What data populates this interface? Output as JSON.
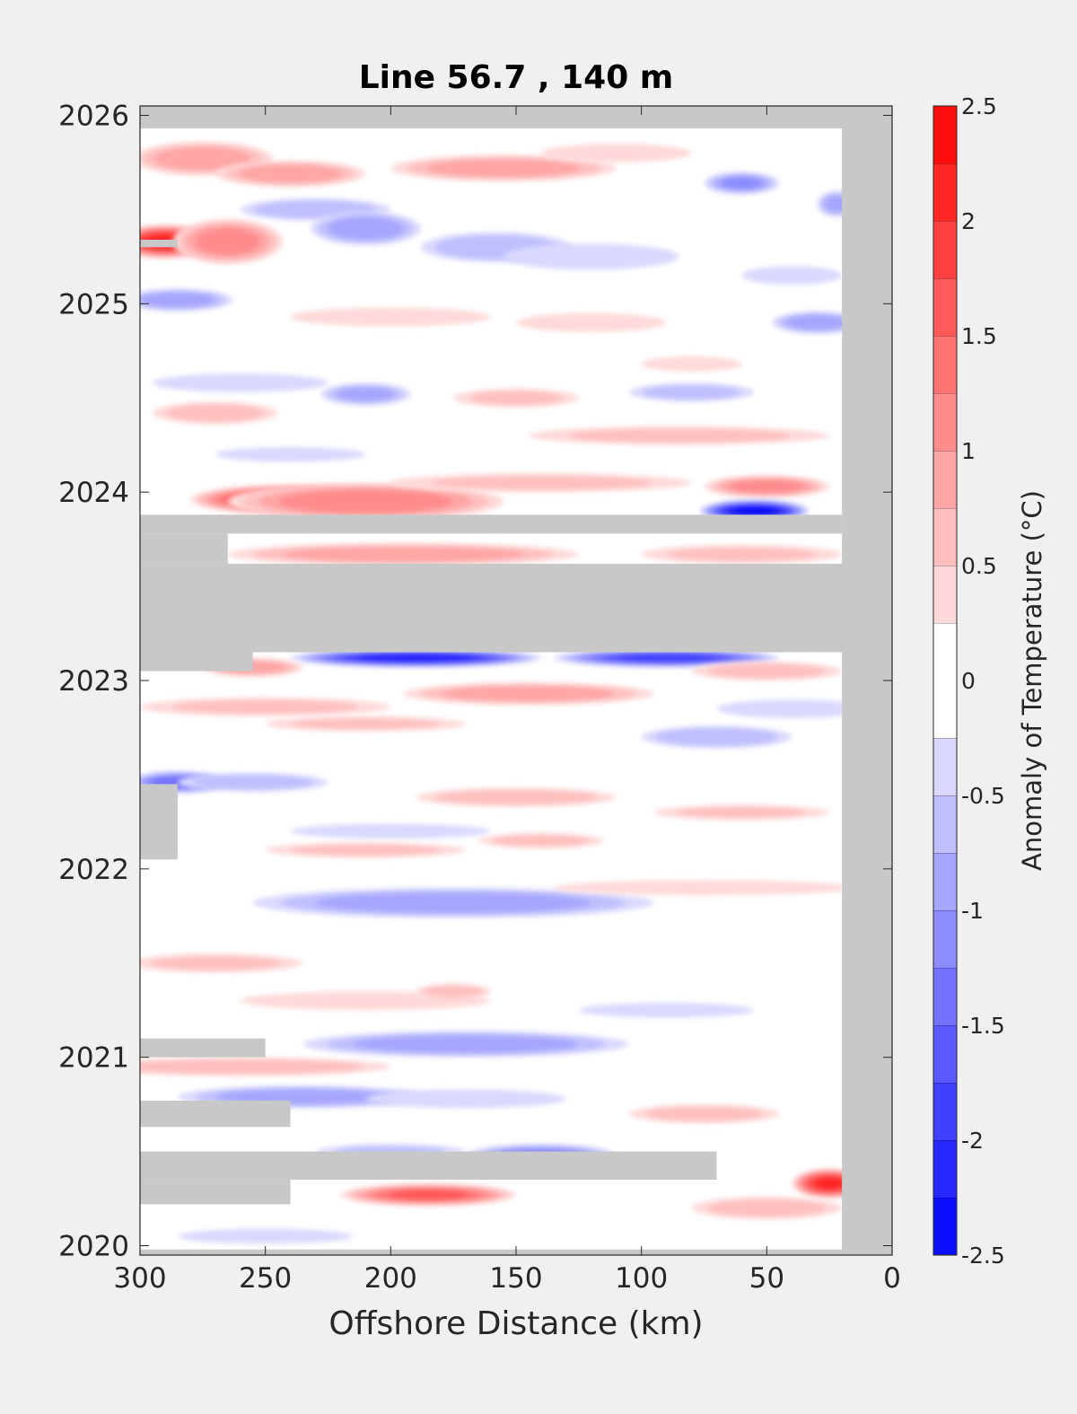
{
  "chart_data": {
    "type": "heatmap",
    "title": "Line 56.7 , 140 m",
    "xlabel": "Offshore Distance (km)",
    "ylabel": "",
    "colorbar_label": "Anomaly of Temperature (°C)",
    "x_direction": "reversed",
    "xlim": [
      0,
      300
    ],
    "ylim": [
      2019.95,
      2026.05
    ],
    "x_ticks": [
      300,
      250,
      200,
      150,
      100,
      50,
      0
    ],
    "y_ticks": [
      2020,
      2021,
      2022,
      2023,
      2024,
      2025,
      2026
    ],
    "colorbar_ticks": [
      -2.5,
      -2,
      -1.5,
      -1,
      -0.5,
      0,
      0.5,
      1,
      1.5,
      2,
      2.5
    ],
    "color_levels": [
      -2.5,
      -2.25,
      -2,
      -1.75,
      -1.5,
      -1.25,
      -1,
      -0.75,
      -0.5,
      -0.25,
      0.25,
      0.5,
      0.75,
      1,
      1.25,
      1.5,
      1.75,
      2,
      2.25,
      2.5
    ],
    "colormap": {
      "negative": "#0000ff",
      "zero": "#ffffff",
      "positive": "#ff0000"
    },
    "no_data_color": "#c8c8c8",
    "data_coverage": {
      "x": [
        20,
        300
      ],
      "y": [
        2019.98,
        2025.93
      ]
    },
    "no_data_regions": [
      {
        "x": [
          0,
          20
        ],
        "y": [
          2019.95,
          2026.05
        ]
      },
      {
        "x": [
          0,
          300
        ],
        "y": [
          2025.93,
          2026.05
        ]
      },
      {
        "x": [
          0,
          300
        ],
        "y": [
          2019.95,
          2019.98
        ]
      },
      {
        "x": [
          0,
          300
        ],
        "y": [
          2023.15,
          2023.62
        ]
      },
      {
        "x": [
          20,
          300
        ],
        "y": [
          2023.78,
          2023.88
        ]
      },
      {
        "x": [
          265,
          300
        ],
        "y": [
          2023.62,
          2023.78
        ]
      },
      {
        "x": [
          255,
          300
        ],
        "y": [
          2023.05,
          2023.15
        ]
      },
      {
        "x": [
          285,
          300
        ],
        "y": [
          2022.05,
          2022.45
        ]
      },
      {
        "x": [
          250,
          300
        ],
        "y": [
          2021.0,
          2021.1
        ]
      },
      {
        "x": [
          240,
          300
        ],
        "y": [
          2020.63,
          2020.77
        ]
      },
      {
        "x": [
          70,
          300
        ],
        "y": [
          2020.35,
          2020.5
        ]
      },
      {
        "x": [
          240,
          300
        ],
        "y": [
          2020.22,
          2020.35
        ]
      },
      {
        "x": [
          285,
          300
        ],
        "y": [
          2025.3,
          2025.34
        ]
      }
    ],
    "anomaly_features": [
      {
        "x": 275,
        "y": 2025.77,
        "value": 0.9,
        "rx": 28,
        "ry": 0.09
      },
      {
        "x": 240,
        "y": 2025.69,
        "value": 0.9,
        "rx": 30,
        "ry": 0.07
      },
      {
        "x": 155,
        "y": 2025.72,
        "value": 0.9,
        "rx": 45,
        "ry": 0.07
      },
      {
        "x": 110,
        "y": 2025.8,
        "value": 0.3,
        "rx": 30,
        "ry": 0.05
      },
      {
        "x": 290,
        "y": 2025.33,
        "value": 2.1,
        "rx": 20,
        "ry": 0.09
      },
      {
        "x": 265,
        "y": 2025.33,
        "value": 1.1,
        "rx": 22,
        "ry": 0.12
      },
      {
        "x": 230,
        "y": 2025.5,
        "value": -0.7,
        "rx": 30,
        "ry": 0.06
      },
      {
        "x": 210,
        "y": 2025.4,
        "value": -0.9,
        "rx": 22,
        "ry": 0.09
      },
      {
        "x": 158,
        "y": 2025.3,
        "value": -0.7,
        "rx": 30,
        "ry": 0.08
      },
      {
        "x": 120,
        "y": 2025.25,
        "value": -0.4,
        "rx": 35,
        "ry": 0.07
      },
      {
        "x": 60,
        "y": 2025.64,
        "value": -1.0,
        "rx": 15,
        "ry": 0.06
      },
      {
        "x": 22,
        "y": 2025.53,
        "value": -0.8,
        "rx": 8,
        "ry": 0.07
      },
      {
        "x": 285,
        "y": 2025.02,
        "value": -0.9,
        "rx": 22,
        "ry": 0.06
      },
      {
        "x": 30,
        "y": 2024.9,
        "value": -0.9,
        "rx": 18,
        "ry": 0.06
      },
      {
        "x": 40,
        "y": 2025.15,
        "value": -0.3,
        "rx": 20,
        "ry": 0.05
      },
      {
        "x": 200,
        "y": 2024.93,
        "value": 0.4,
        "rx": 40,
        "ry": 0.05
      },
      {
        "x": 120,
        "y": 2024.9,
        "value": 0.4,
        "rx": 30,
        "ry": 0.05
      },
      {
        "x": 210,
        "y": 2024.52,
        "value": -0.8,
        "rx": 18,
        "ry": 0.06
      },
      {
        "x": 260,
        "y": 2024.58,
        "value": -0.4,
        "rx": 35,
        "ry": 0.05
      },
      {
        "x": 80,
        "y": 2024.53,
        "value": -0.6,
        "rx": 25,
        "ry": 0.05
      },
      {
        "x": 270,
        "y": 2024.42,
        "value": 0.6,
        "rx": 25,
        "ry": 0.06
      },
      {
        "x": 150,
        "y": 2024.5,
        "value": 0.5,
        "rx": 25,
        "ry": 0.05
      },
      {
        "x": 80,
        "y": 2024.68,
        "value": 0.3,
        "rx": 20,
        "ry": 0.04
      },
      {
        "x": 85,
        "y": 2024.3,
        "value": 0.5,
        "rx": 60,
        "ry": 0.05
      },
      {
        "x": 240,
        "y": 2024.2,
        "value": -0.4,
        "rx": 30,
        "ry": 0.04
      },
      {
        "x": 240,
        "y": 2023.96,
        "value": 2.0,
        "rx": 40,
        "ry": 0.08
      },
      {
        "x": 210,
        "y": 2023.95,
        "value": 1.2,
        "rx": 55,
        "ry": 0.1
      },
      {
        "x": 140,
        "y": 2024.05,
        "value": 0.5,
        "rx": 60,
        "ry": 0.05
      },
      {
        "x": 50,
        "y": 2024.03,
        "value": 1.1,
        "rx": 25,
        "ry": 0.06
      },
      {
        "x": 55,
        "y": 2023.9,
        "value": -2.4,
        "rx": 22,
        "ry": 0.06
      },
      {
        "x": 195,
        "y": 2023.67,
        "value": 0.9,
        "rx": 70,
        "ry": 0.06
      },
      {
        "x": 60,
        "y": 2023.67,
        "value": 0.5,
        "rx": 40,
        "ry": 0.05
      },
      {
        "x": 190,
        "y": 2023.12,
        "value": -2.2,
        "rx": 50,
        "ry": 0.05
      },
      {
        "x": 90,
        "y": 2023.12,
        "value": -1.8,
        "rx": 45,
        "ry": 0.05
      },
      {
        "x": 255,
        "y": 2023.07,
        "value": 0.9,
        "rx": 20,
        "ry": 0.05
      },
      {
        "x": 50,
        "y": 2023.05,
        "value": 0.6,
        "rx": 30,
        "ry": 0.05
      },
      {
        "x": 145,
        "y": 2022.93,
        "value": 0.9,
        "rx": 50,
        "ry": 0.06
      },
      {
        "x": 250,
        "y": 2022.86,
        "value": 0.5,
        "rx": 50,
        "ry": 0.05
      },
      {
        "x": 210,
        "y": 2022.77,
        "value": 0.5,
        "rx": 40,
        "ry": 0.04
      },
      {
        "x": 70,
        "y": 2022.7,
        "value": -0.7,
        "rx": 30,
        "ry": 0.06
      },
      {
        "x": 40,
        "y": 2022.85,
        "value": -0.3,
        "rx": 30,
        "ry": 0.05
      },
      {
        "x": 285,
        "y": 2022.46,
        "value": -1.3,
        "rx": 20,
        "ry": 0.06
      },
      {
        "x": 255,
        "y": 2022.46,
        "value": -0.7,
        "rx": 30,
        "ry": 0.05
      },
      {
        "x": 150,
        "y": 2022.38,
        "value": 0.7,
        "rx": 40,
        "ry": 0.05
      },
      {
        "x": 60,
        "y": 2022.3,
        "value": 0.5,
        "rx": 35,
        "ry": 0.04
      },
      {
        "x": 200,
        "y": 2022.2,
        "value": -0.4,
        "rx": 40,
        "ry": 0.04
      },
      {
        "x": 140,
        "y": 2022.15,
        "value": 0.6,
        "rx": 25,
        "ry": 0.04
      },
      {
        "x": 210,
        "y": 2022.1,
        "value": 0.5,
        "rx": 40,
        "ry": 0.04
      },
      {
        "x": 175,
        "y": 2021.82,
        "value": -0.9,
        "rx": 80,
        "ry": 0.08
      },
      {
        "x": 75,
        "y": 2021.9,
        "value": 0.3,
        "rx": 60,
        "ry": 0.04
      },
      {
        "x": 270,
        "y": 2021.5,
        "value": 0.5,
        "rx": 35,
        "ry": 0.05
      },
      {
        "x": 210,
        "y": 2021.3,
        "value": 0.4,
        "rx": 50,
        "ry": 0.05
      },
      {
        "x": 175,
        "y": 2021.35,
        "value": 0.7,
        "rx": 15,
        "ry": 0.04
      },
      {
        "x": 170,
        "y": 2021.07,
        "value": -0.9,
        "rx": 65,
        "ry": 0.07
      },
      {
        "x": 90,
        "y": 2021.25,
        "value": -0.3,
        "rx": 35,
        "ry": 0.04
      },
      {
        "x": 260,
        "y": 2020.95,
        "value": 0.7,
        "rx": 60,
        "ry": 0.05
      },
      {
        "x": 235,
        "y": 2020.79,
        "value": -0.9,
        "rx": 50,
        "ry": 0.06
      },
      {
        "x": 170,
        "y": 2020.78,
        "value": -0.4,
        "rx": 40,
        "ry": 0.05
      },
      {
        "x": 75,
        "y": 2020.7,
        "value": 0.6,
        "rx": 30,
        "ry": 0.05
      },
      {
        "x": 140,
        "y": 2020.48,
        "value": -1.1,
        "rx": 30,
        "ry": 0.06
      },
      {
        "x": 200,
        "y": 2020.5,
        "value": -0.5,
        "rx": 30,
        "ry": 0.04
      },
      {
        "x": 185,
        "y": 2020.27,
        "value": 1.5,
        "rx": 35,
        "ry": 0.06
      },
      {
        "x": 25,
        "y": 2020.33,
        "value": 2.0,
        "rx": 15,
        "ry": 0.08
      },
      {
        "x": 50,
        "y": 2020.2,
        "value": 0.6,
        "rx": 30,
        "ry": 0.06
      },
      {
        "x": 250,
        "y": 2020.05,
        "value": -0.4,
        "rx": 35,
        "ry": 0.04
      }
    ]
  }
}
